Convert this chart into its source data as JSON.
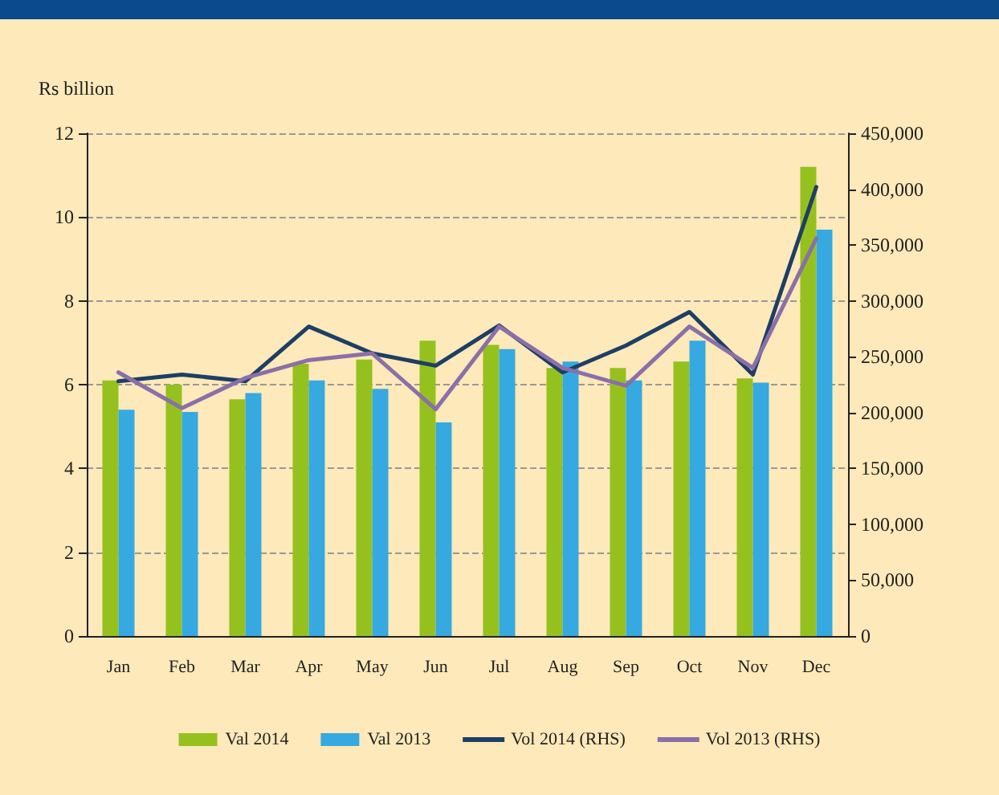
{
  "chart_data": {
    "type": "bar",
    "ylabel": "Rs billion",
    "categories": [
      "Jan",
      "Feb",
      "Mar",
      "Apr",
      "May",
      "Jun",
      "Jul",
      "Aug",
      "Sep",
      "Oct",
      "Nov",
      "Dec"
    ],
    "series": [
      {
        "name": "Val 2014",
        "color": "#95c11f",
        "values": [
          6.1,
          6.0,
          5.65,
          6.5,
          6.6,
          7.05,
          6.95,
          6.4,
          6.4,
          6.55,
          6.15,
          11.2
        ]
      },
      {
        "name": "Val 2013",
        "color": "#36a9e1",
        "values": [
          5.4,
          5.35,
          5.8,
          6.1,
          5.9,
          5.1,
          6.85,
          6.55,
          6.1,
          7.05,
          6.05,
          9.7
        ]
      },
      {
        "name": "Vol 2014 (RHS)",
        "type": "line",
        "axis": "y2",
        "color": "#1d3f66",
        "values": [
          228000,
          234000,
          228000,
          277000,
          253000,
          242000,
          278000,
          236000,
          260000,
          290000,
          234000,
          402000
        ]
      },
      {
        "name": "Vol 2013 (RHS)",
        "type": "line",
        "axis": "y2",
        "color": "#8a6fa8",
        "values": [
          236000,
          204000,
          231000,
          247000,
          253000,
          203000,
          277000,
          240000,
          224000,
          277000,
          240000,
          356000
        ]
      }
    ],
    "ylim": [
      0,
      12
    ],
    "yticks": [
      0,
      2,
      4,
      6,
      8,
      10,
      12
    ],
    "y2lim": [
      0,
      450000
    ],
    "y2ticks": [
      0,
      {
        "value": 50000,
        "label": "50,000"
      },
      {
        "value": 100000,
        "label": "100,000"
      },
      {
        "value": 150000,
        "label": "150,000"
      },
      {
        "value": 200000,
        "label": "200,000"
      },
      {
        "value": 250000,
        "label": "250,000"
      },
      {
        "value": 300000,
        "label": "300,000"
      },
      {
        "value": 350000,
        "label": "350,000"
      },
      {
        "value": 400000,
        "label": "400,000"
      },
      {
        "value": 450000,
        "label": "450,000"
      }
    ],
    "grid": "y",
    "legend": "bottom",
    "marker": "none",
    "line_style": "solid"
  }
}
